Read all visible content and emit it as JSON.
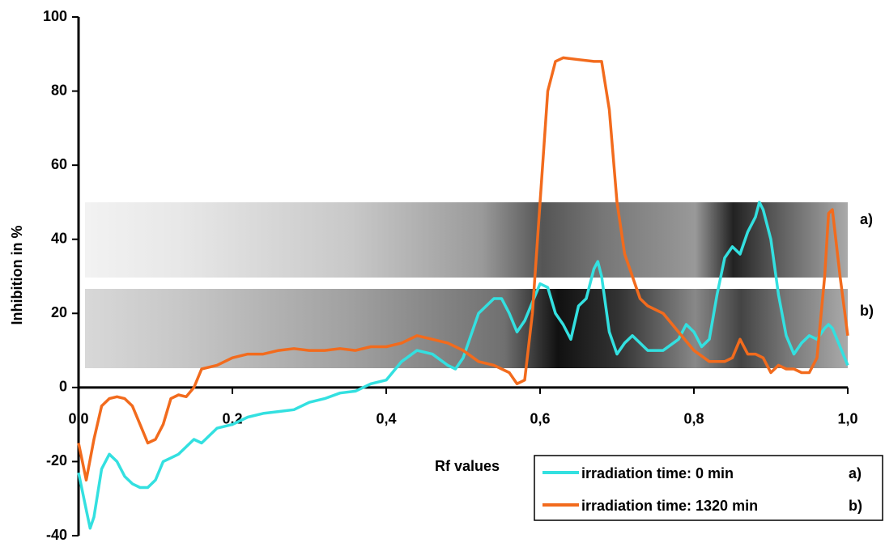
{
  "chart_data": {
    "type": "line",
    "x_label": "Rf values",
    "y_label": "Inhibition in %",
    "annotations": [
      "a)",
      "b)"
    ],
    "xlim": [
      0,
      1
    ],
    "xticks": [
      {
        "value": 0,
        "label": "0,0"
      },
      {
        "value": 0.2,
        "label": "0,2"
      },
      {
        "value": 0.4,
        "label": "0,4"
      },
      {
        "value": 0.6,
        "label": "0,6"
      },
      {
        "value": 0.8,
        "label": "0,8"
      },
      {
        "value": 1,
        "label": "1,0"
      }
    ],
    "ylim": [
      -40,
      100
    ],
    "yticks": [
      -40,
      -20,
      0,
      20,
      40,
      60,
      80,
      100
    ],
    "grid": false,
    "series": [
      {
        "name": "irradiation time: 0 min",
        "color": "#33e0e0",
        "x": [
          0.0,
          0.01,
          0.015,
          0.02,
          0.03,
          0.04,
          0.05,
          0.06,
          0.07,
          0.08,
          0.09,
          0.1,
          0.11,
          0.12,
          0.13,
          0.14,
          0.15,
          0.16,
          0.17,
          0.18,
          0.2,
          0.22,
          0.24,
          0.26,
          0.28,
          0.3,
          0.32,
          0.34,
          0.36,
          0.38,
          0.4,
          0.42,
          0.44,
          0.46,
          0.48,
          0.49,
          0.5,
          0.52,
          0.54,
          0.55,
          0.56,
          0.57,
          0.58,
          0.6,
          0.61,
          0.62,
          0.63,
          0.64,
          0.65,
          0.66,
          0.67,
          0.675,
          0.68,
          0.69,
          0.7,
          0.71,
          0.72,
          0.74,
          0.76,
          0.78,
          0.79,
          0.8,
          0.81,
          0.82,
          0.83,
          0.84,
          0.85,
          0.86,
          0.87,
          0.88,
          0.885,
          0.89,
          0.9,
          0.91,
          0.92,
          0.93,
          0.94,
          0.95,
          0.96,
          0.97,
          0.975,
          0.98,
          0.99,
          1.0
        ],
        "values": [
          -23,
          -33,
          -38,
          -35,
          -22,
          -18,
          -20,
          -24,
          -26,
          -27,
          -27,
          -25,
          -20,
          -19,
          -18,
          -16,
          -14,
          -15,
          -13,
          -11,
          -10,
          -8,
          -7,
          -6.5,
          -6,
          -4,
          -3,
          -1.5,
          -1,
          1,
          2,
          7,
          10,
          9,
          6,
          5,
          8,
          20,
          24,
          24,
          20,
          15,
          18,
          28,
          27,
          20,
          17,
          13,
          22,
          24,
          32,
          34,
          30,
          15,
          9,
          12,
          14,
          10,
          10,
          13,
          17,
          15,
          11,
          13,
          25,
          35,
          38,
          36,
          42,
          46,
          50,
          48,
          40,
          25,
          14,
          9,
          12,
          14,
          13,
          16,
          17,
          16,
          11,
          6
        ]
      },
      {
        "name": "irradiation time: 1320 min",
        "color": "#f26b1d",
        "x": [
          0.0,
          0.01,
          0.02,
          0.03,
          0.04,
          0.05,
          0.06,
          0.07,
          0.08,
          0.09,
          0.1,
          0.11,
          0.12,
          0.13,
          0.14,
          0.15,
          0.16,
          0.18,
          0.2,
          0.22,
          0.24,
          0.26,
          0.28,
          0.3,
          0.32,
          0.34,
          0.36,
          0.38,
          0.4,
          0.42,
          0.44,
          0.46,
          0.48,
          0.5,
          0.52,
          0.54,
          0.56,
          0.57,
          0.58,
          0.59,
          0.6,
          0.61,
          0.62,
          0.63,
          0.65,
          0.67,
          0.68,
          0.69,
          0.7,
          0.71,
          0.72,
          0.73,
          0.74,
          0.76,
          0.78,
          0.8,
          0.82,
          0.84,
          0.85,
          0.86,
          0.87,
          0.88,
          0.89,
          0.9,
          0.91,
          0.92,
          0.93,
          0.94,
          0.95,
          0.96,
          0.97,
          0.975,
          0.98,
          0.99,
          1.0
        ],
        "values": [
          -15,
          -25,
          -14,
          -5,
          -3,
          -2.5,
          -3,
          -5,
          -10,
          -15,
          -14,
          -10,
          -3,
          -2,
          -2.5,
          0,
          5,
          6,
          8,
          9,
          9,
          10,
          10.5,
          10,
          10,
          10.5,
          10,
          11,
          11,
          12,
          14,
          13,
          12,
          10,
          7,
          6,
          4,
          1,
          2,
          20,
          50,
          80,
          88,
          89,
          88.5,
          88,
          88,
          75,
          50,
          36,
          30,
          24,
          22,
          20,
          15,
          10,
          7,
          7,
          8,
          13,
          9,
          9,
          8,
          4,
          6,
          5,
          5,
          4,
          4,
          8,
          30,
          47,
          48,
          30,
          14
        ]
      }
    ]
  }
}
